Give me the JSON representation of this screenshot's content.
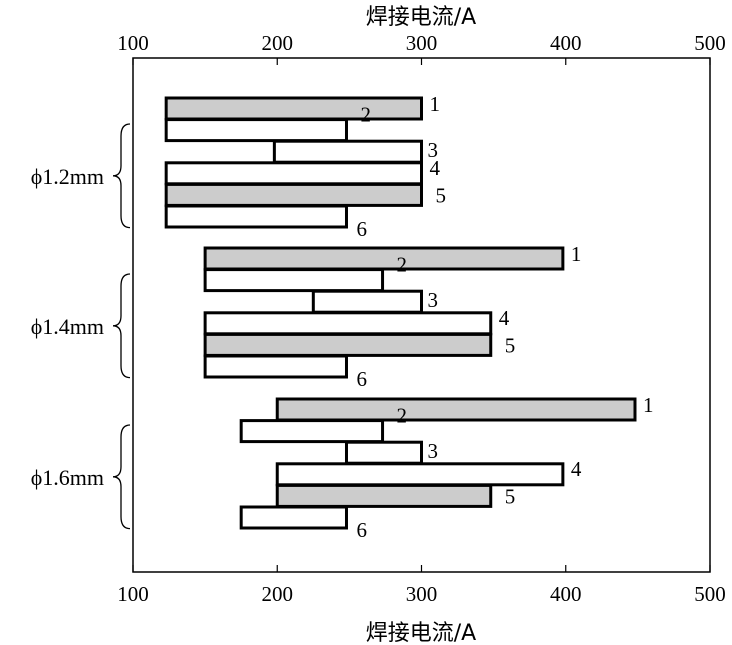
{
  "chart_data": {
    "type": "bar",
    "orientation": "horizontal-range",
    "title": "",
    "xlabel_top": "焊接电流/A",
    "xlabel_bottom": "焊接电流/A",
    "xlim": [
      100,
      500
    ],
    "xticks": [
      "100",
      "200",
      "300",
      "400",
      "500"
    ],
    "legend": "none",
    "grid": false,
    "colors": {
      "filled": "#cccccc",
      "hollow": "#ffffff",
      "outline": "#000000"
    },
    "groups": [
      {
        "label": "ϕ1.2mm",
        "bars": [
          {
            "label": "1",
            "start": 123,
            "end": 300,
            "filled": true
          },
          {
            "label": "2",
            "start": 123,
            "end": 248,
            "filled": false
          },
          {
            "label": "3",
            "start": 198,
            "end": 300,
            "filled": false
          },
          {
            "label": "4",
            "start": 123,
            "end": 300,
            "filled": false
          },
          {
            "label": "5",
            "start": 123,
            "end": 300,
            "filled": true
          },
          {
            "label": "6",
            "start": 123,
            "end": 248,
            "filled": false
          }
        ]
      },
      {
        "label": "ϕ1.4mm",
        "bars": [
          {
            "label": "1",
            "start": 150,
            "end": 398,
            "filled": true
          },
          {
            "label": "2",
            "start": 150,
            "end": 273,
            "filled": false
          },
          {
            "label": "3",
            "start": 225,
            "end": 300,
            "filled": false
          },
          {
            "label": "4",
            "start": 150,
            "end": 348,
            "filled": false
          },
          {
            "label": "5",
            "start": 150,
            "end": 348,
            "filled": true
          },
          {
            "label": "6",
            "start": 150,
            "end": 248,
            "filled": false
          }
        ]
      },
      {
        "label": "ϕ1.6mm",
        "bars": [
          {
            "label": "1",
            "start": 200,
            "end": 448,
            "filled": true
          },
          {
            "label": "2",
            "start": 175,
            "end": 273,
            "filled": false
          },
          {
            "label": "3",
            "start": 248,
            "end": 300,
            "filled": false
          },
          {
            "label": "4",
            "start": 200,
            "end": 398,
            "filled": false
          },
          {
            "label": "5",
            "start": 200,
            "end": 348,
            "filled": true
          },
          {
            "label": "6",
            "start": 175,
            "end": 248,
            "filled": false
          }
        ]
      }
    ]
  }
}
